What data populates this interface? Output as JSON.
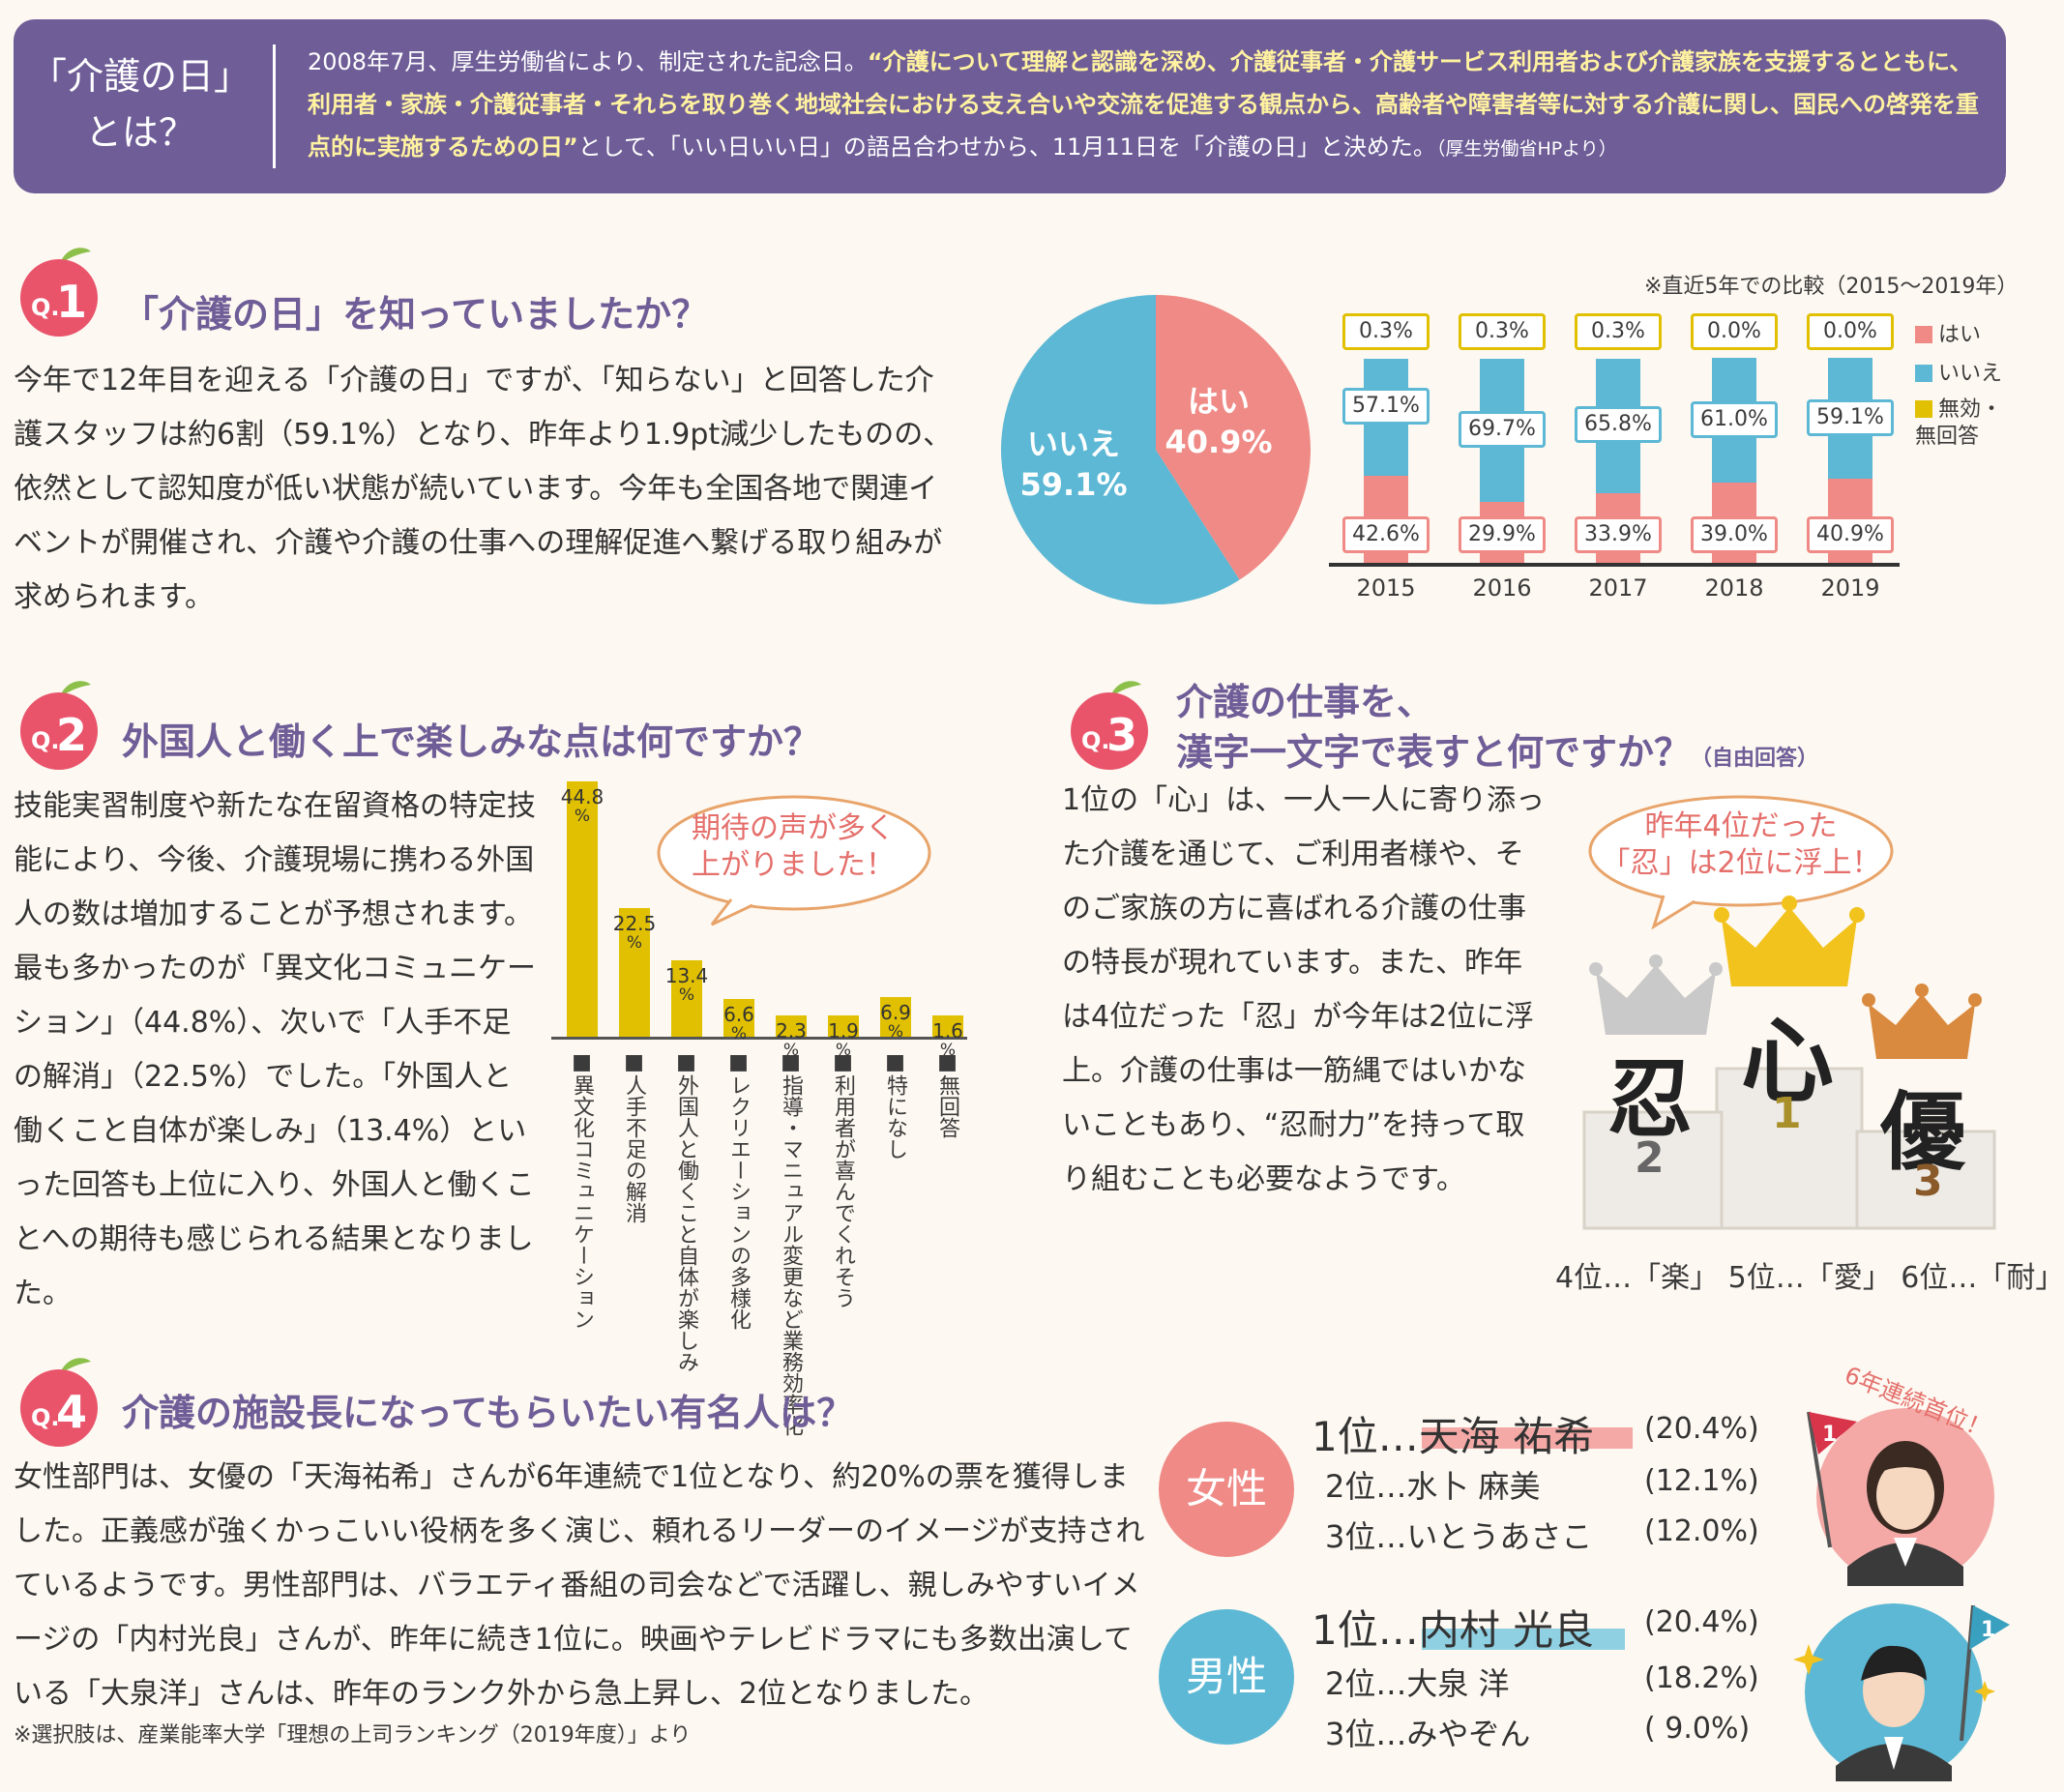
{
  "header": {
    "title": "「介護の日」\nとは？",
    "text_plain1": "2008年7月、厚生労働省により、制定された記念日。",
    "text_emph": "“介護について理解と認識を深め、介護従事者・介護サービス利用者および介護家族を支援するとともに、利用者・家族・介護従事者・それらを取り巻く地域社会における支え合いや交流を促進する観点から、高齢者や障害者等に対する介護に関し、国民への啓発を重点的に実施するための日”",
    "text_plain2": "として、「いい日いい日」の語呂合わせから、11月11日を「介護の日」と決めた。",
    "text_source": "（厚生労働省HPより）"
  },
  "q1": {
    "badge_q": "Q.",
    "badge_n": "1",
    "title": "「介護の日」を知っていましたか？",
    "body": "今年で12年目を迎える「介護の日」ですが、「知らない」と回答した介護スタッフは約6割（59.1%）となり、昨年より1.9pt減少したものの、依然として認知度が低い状態が続いています。今年も全国各地で関連イベントが開催され、介護や介護の仕事への理解促進へ繋げる取り組みが求められます。",
    "pie_yes_label": "はい",
    "pie_yes_value": "40.9%",
    "pie_no_label": "いいえ",
    "pie_no_value": "59.1%",
    "compare_note": "※直近5年での比較（2015～2019年）",
    "legend": [
      "はい",
      "いいえ",
      "無効・\n無回答"
    ]
  },
  "q2": {
    "badge_q": "Q.",
    "badge_n": "2",
    "title": "外国人と働く上で楽しみな点は何ですか？",
    "body": "技能実習制度や新たな在留資格の特定技能により、今後、介護現場に携わる外国人の数は増加することが予想されます。最も多かったのが「異文化コミュニケーション」（44.8%）、次いで「人手不足の解消」（22.5%）でした。「外国人と働くこと自体が楽しみ」（13.4%）といった回答も上位に入り、外国人と働くことへの期待も感じられる結果となりました。",
    "bubble": "期待の声が多く\n上がりました！"
  },
  "q3": {
    "badge_q": "Q.",
    "badge_n": "3",
    "title_line1": "介護の仕事を、",
    "title_line2": "漢字一文字で表すと何ですか？",
    "title_note": "（自由回答）",
    "body": "1位の「心」は、一人一人に寄り添った介護を通じて、ご利用者様や、そのご家族の方に喜ばれる介護の仕事の特長が現れています。また、昨年は4位だった「忍」が今年は2位に浮上。介護の仕事は一筋縄ではいかないこともあり、“忍耐力”を持って取り組むことも必要なようです。",
    "bubble": "昨年4位だった\n「忍」は2位に浮上！",
    "first": "心",
    "second": "忍",
    "third": "優",
    "n1": "1",
    "n2": "2",
    "n3": "3",
    "others": "4位…「楽」 5位…「愛」 6位…「耐」"
  },
  "q4": {
    "badge_q": "Q.",
    "badge_n": "4",
    "title": "介護の施設長になってもらいたい有名人は？",
    "body": "女性部門は、女優の「天海祐希」さんが6年連続で1位となり、約20%の票を獲得しました。正義感が強くかっこいい役柄を多く演じ、頼れるリーダーのイメージが支持されているようです。男性部門は、バラエティ番組の司会などで活躍し、親しみやすいイメージの「内村光良」さんが、昨年に続き1位に。映画やテレビドラマにも多数出演している「大泉洋」さんは、昨年のランク外から急上昇し、2位となりました。",
    "note": "※選択肢は、産業能率大学「理想の上司ランキング（2019年度）」より",
    "female_label": "女性",
    "male_label": "男性",
    "female": [
      {
        "rank": "1位…",
        "name": "天海 祐希",
        "pct": "(20.4%)"
      },
      {
        "rank": "2位…",
        "name": "水卜 麻美",
        "pct": "(12.1%)"
      },
      {
        "rank": "3位…",
        "name": "いとうあさこ",
        "pct": "(12.0%)"
      }
    ],
    "male": [
      {
        "rank": "1位…",
        "name": "内村 光良",
        "pct": "(20.4%)"
      },
      {
        "rank": "2位…",
        "name": "大泉 洋",
        "pct": "(18.2%)"
      },
      {
        "rank": "3位…",
        "name": "みやぞん",
        "pct": "(  9.0%)"
      }
    ],
    "streak": "6年連続首位！",
    "flag_num": "1"
  },
  "chart_data": [
    {
      "type": "pie",
      "labels": [
        "はい",
        "いいえ"
      ],
      "values": [
        40.9,
        59.1
      ],
      "colors": [
        "#ef8a86",
        "#5cb8d4"
      ]
    },
    {
      "type": "bar",
      "stacked": true,
      "categories": [
        "2015",
        "2016",
        "2017",
        "2018",
        "2019"
      ],
      "series": [
        {
          "name": "はい",
          "values": [
            42.6,
            29.9,
            33.9,
            39.0,
            40.9
          ],
          "labels": [
            "42.6%",
            "29.9%",
            "33.9%",
            "39.0%",
            "40.9%"
          ],
          "color": "#ef8a86"
        },
        {
          "name": "いいえ",
          "values": [
            57.1,
            69.7,
            65.8,
            61.0,
            59.1
          ],
          "labels": [
            "57.1%",
            "69.7%",
            "65.8%",
            "61.0%",
            "59.1%"
          ],
          "color": "#5cb8d4"
        },
        {
          "name": "無効・無回答",
          "values": [
            0.3,
            0.3,
            0.3,
            0.0,
            0.0
          ],
          "labels": [
            "0.3%",
            "0.3%",
            "0.3%",
            "0.0%",
            "0.0%"
          ],
          "color": "#e0c000"
        }
      ],
      "ylim": [
        0,
        100
      ]
    },
    {
      "type": "bar",
      "categories": [
        "■異文化コミュニケーション",
        "■人手不足の解消",
        "■外国人と働くこと自体が楽しみ",
        "■レクリエーションの多様化",
        "■指導・マニュアル変更など業務効率化",
        "■利用者が喜んでくれそう",
        "■特になし",
        "■無回答"
      ],
      "values": [
        44.8,
        22.5,
        13.4,
        6.6,
        2.3,
        1.9,
        6.9,
        1.6
      ],
      "labels": [
        "44.8",
        "22.5",
        "13.4",
        "6.6",
        "2.3",
        "1.9",
        "6.9",
        "1.6"
      ],
      "unit": "%",
      "color": "#e0c000",
      "ylim": [
        0,
        44.8
      ]
    }
  ]
}
